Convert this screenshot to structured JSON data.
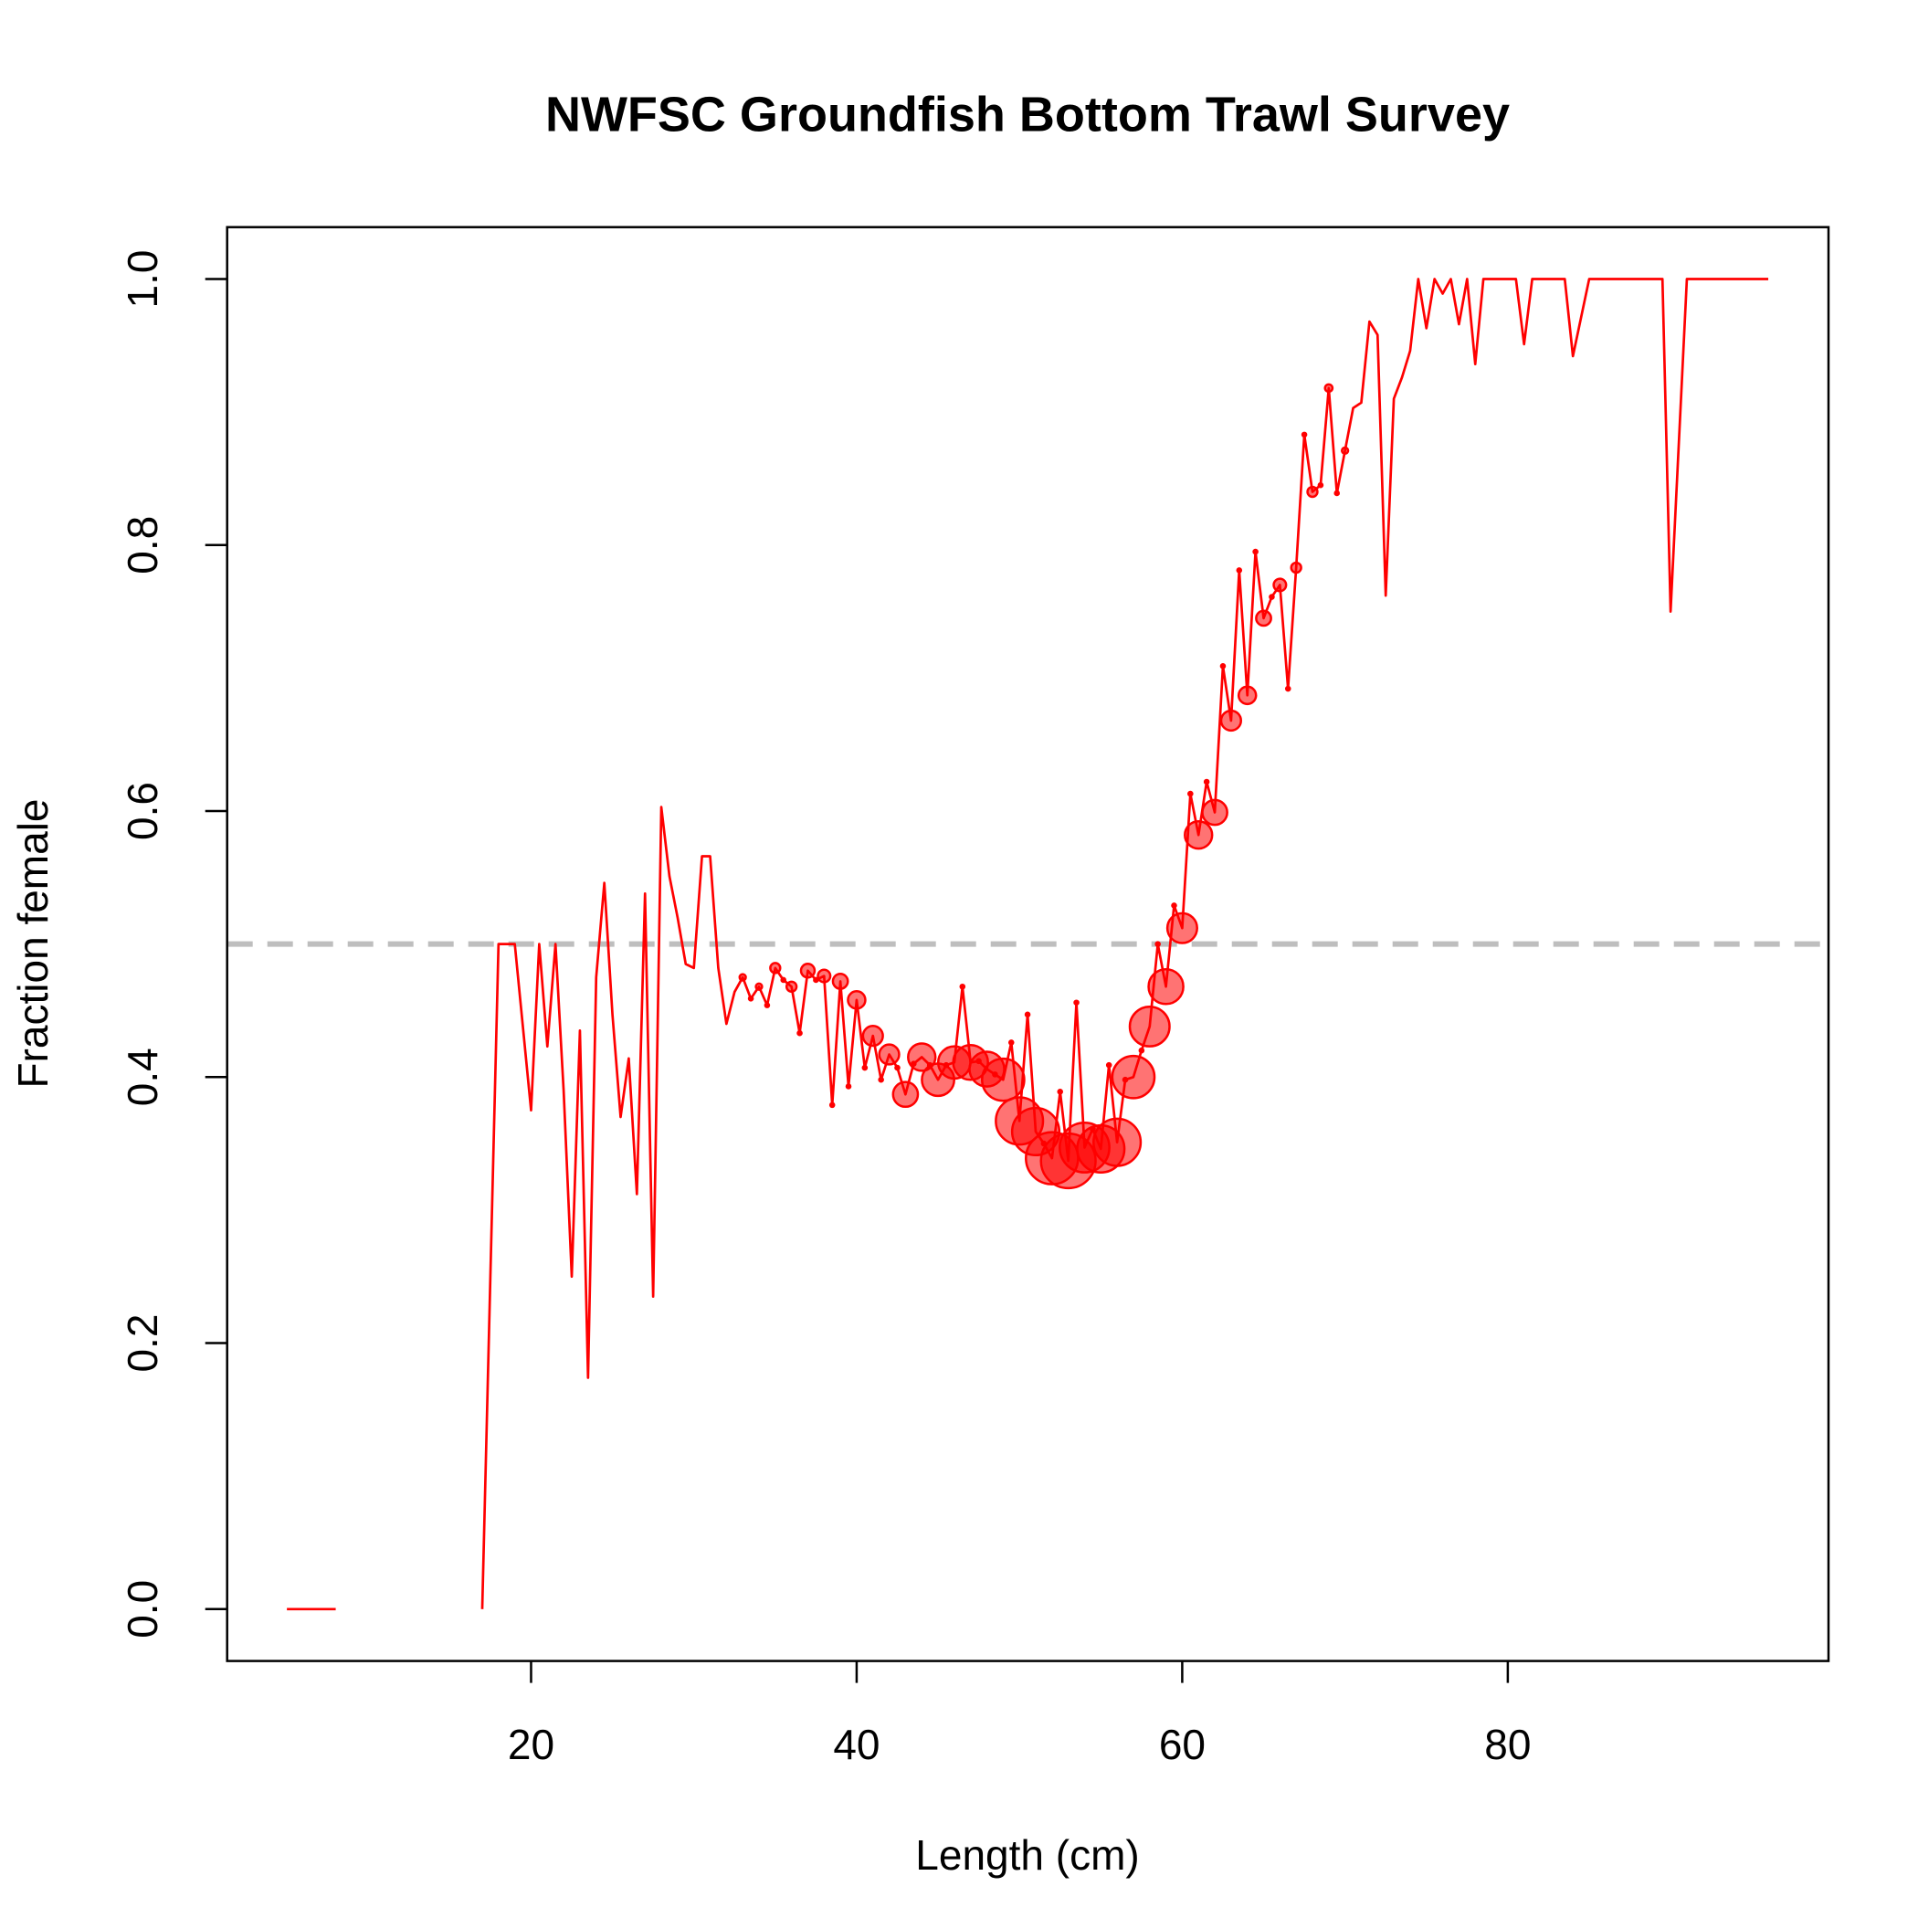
{
  "chart_data": {
    "type": "line",
    "title": "NWFSC Groundfish Bottom Trawl Survey",
    "x_label": "Length (cm)",
    "y_label": "Fraction female",
    "color": "#ff0000",
    "x": [
      5,
      5.5,
      6,
      6.5,
      7,
      7.5,
      8,
      12,
      17,
      18,
      19,
      20,
      20.5,
      21,
      21.5,
      22,
      22.5,
      23,
      23.5,
      24,
      24.5,
      25,
      25.5,
      26,
      26.5,
      27,
      27.5,
      28,
      28.5,
      29,
      29.5,
      30,
      30.5,
      31,
      31.5,
      32,
      32.5,
      33,
      33.5,
      34,
      34.5,
      35,
      35.5,
      36,
      36.5,
      37,
      37.5,
      38,
      38.5,
      39,
      39.5,
      40,
      40.5,
      41,
      41.5,
      42,
      42.5,
      43,
      43.5,
      44,
      44.5,
      45,
      45.5,
      46,
      46.5,
      47,
      47.5,
      48,
      48.5,
      49,
      49.5,
      50,
      50.5,
      51,
      51.5,
      52,
      52.5,
      53,
      53.5,
      54,
      54.5,
      55,
      55.5,
      56,
      56.5,
      57,
      57.5,
      58,
      58.5,
      59,
      59.5,
      60,
      60.5,
      61,
      61.5,
      62,
      62.5,
      63,
      63.5,
      64,
      64.5,
      65,
      65.5,
      66,
      66.5,
      67,
      67.5,
      68,
      68.5,
      69,
      69.5,
      70,
      70.5,
      71,
      71.5,
      72,
      72.5,
      73,
      73.5,
      74,
      74.5,
      75,
      75.5,
      76,
      76.5,
      77,
      77.5,
      78,
      78.5,
      80.5,
      81,
      81.5,
      83.5,
      84,
      85,
      89.5,
      90,
      91,
      96
    ],
    "values": [
      0,
      0,
      0,
      0,
      0,
      0,
      0,
      null,
      0,
      0.5,
      0.5,
      0.375,
      0.5,
      0.423,
      0.5,
      0.39,
      0.25,
      0.435,
      0.174,
      0.475,
      0.546,
      0.447,
      0.37,
      0.414,
      0.312,
      0.538,
      0.235,
      0.603,
      0.551,
      0.52,
      0.485,
      0.482,
      0.566,
      0.566,
      0.482,
      0.44,
      0.464,
      0.475,
      0.459,
      0.468,
      0.454,
      0.482,
      0.473,
      0.468,
      0.433,
      0.48,
      0.473,
      0.476,
      0.379,
      0.472,
      0.393,
      0.458,
      0.407,
      0.431,
      0.398,
      0.417,
      0.407,
      0.387,
      0.41,
      0.415,
      0.409,
      0.398,
      0.409,
      0.411,
      0.468,
      0.411,
      0.412,
      0.406,
      0.402,
      0.398,
      0.426,
      0.367,
      0.447,
      0.359,
      0.35,
      0.339,
      0.389,
      0.337,
      0.456,
      0.347,
      0.361,
      0.346,
      0.409,
      0.351,
      0.398,
      0.4,
      0.42,
      0.438,
      0.5,
      0.468,
      0.529,
      0.512,
      0.613,
      0.582,
      0.622,
      0.599,
      0.709,
      0.668,
      0.781,
      0.687,
      0.795,
      0.745,
      0.761,
      0.77,
      0.692,
      0.783,
      0.883,
      0.84,
      0.845,
      0.918,
      0.839,
      0.871,
      0.903,
      0.907,
      0.968,
      0.958,
      0.762,
      0.91,
      0.926,
      0.946,
      1,
      0.963,
      1,
      0.989,
      1,
      0.966,
      1,
      0.936,
      1,
      1,
      0.951,
      1,
      1,
      0.942,
      1,
      1,
      0.75,
      1,
      1
    ],
    "sizes": [
      null,
      null,
      null,
      null,
      null,
      null,
      null,
      null,
      null,
      null,
      null,
      null,
      null,
      null,
      null,
      null,
      null,
      null,
      null,
      null,
      null,
      null,
      null,
      null,
      null,
      null,
      null,
      null,
      null,
      null,
      null,
      null,
      null,
      null,
      null,
      null,
      null,
      2.5,
      1.5,
      2.5,
      1.5,
      4,
      1.5,
      4,
      1.5,
      5.5,
      1.5,
      5,
      1.5,
      6,
      1.5,
      7,
      1.5,
      8,
      1.5,
      8,
      1.5,
      10,
      1.5,
      11,
      1.5,
      13,
      1.5,
      13,
      1.5,
      14,
      1.5,
      14,
      1.5,
      17,
      1.5,
      19,
      1.5,
      19,
      1.5,
      21,
      1.5,
      22,
      1.5,
      20,
      1.5,
      19,
      1.5,
      19,
      1.5,
      17,
      1.5,
      16,
      1.5,
      14,
      1.5,
      12,
      1.5,
      11,
      1.5,
      10,
      1.5,
      8,
      1.5,
      7,
      1.5,
      6,
      1.5,
      5,
      1.5,
      4,
      1.5,
      4,
      1.5,
      3,
      1.5,
      2.5,
      null,
      null,
      null,
      null,
      null,
      null,
      null,
      null,
      null,
      null,
      null,
      null,
      null,
      null,
      null,
      null,
      null,
      null,
      null,
      null,
      null,
      null,
      null,
      null,
      null,
      null,
      null
    ],
    "reference_line": 0.5,
    "xlim": [
      1.33,
      99.7
    ],
    "ylim": [
      -0.039,
      1.039
    ],
    "xticks": [
      20,
      40,
      60,
      80
    ],
    "yticks": [
      {
        "value": 0,
        "label": "0.0"
      },
      0.2,
      0.4,
      0.6,
      0.8,
      {
        "value": 1,
        "label": "1.0"
      }
    ],
    "grid": false
  }
}
